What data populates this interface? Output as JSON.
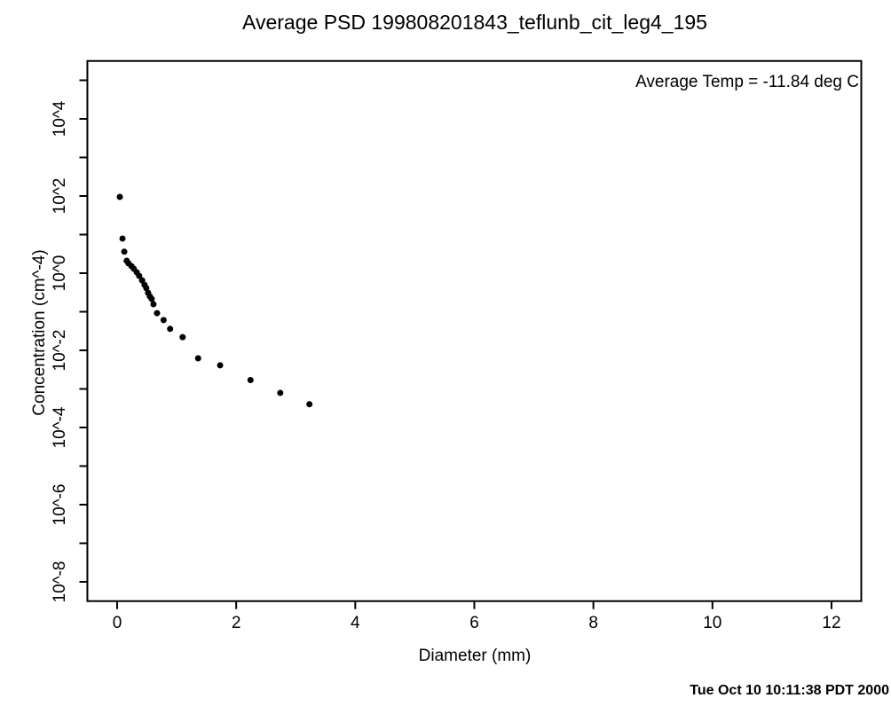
{
  "page": {
    "footer_timestamp": "Tue Oct 10 10:11:38 PDT 2000"
  },
  "chart_data": {
    "type": "scatter",
    "title": "Average PSD 199808201843_teflunb_cit_leg4_195",
    "xlabel": "Diameter (mm)",
    "ylabel": "Concentration (cm^-4)",
    "annotation": "Average Temp = -11.84 deg C",
    "background_color": "#ffffff",
    "axis_color": "#000000",
    "grid": false,
    "x_axis": {
      "min": -0.5,
      "max": 12.5,
      "ticks": [
        0,
        2,
        4,
        6,
        8,
        10,
        12
      ]
    },
    "y_axis": {
      "scale": "log10",
      "min_exp": -8.5,
      "max_exp": 5.5,
      "tick_exps": [
        5,
        4,
        3,
        2,
        1,
        0,
        -1,
        -2,
        -3,
        -4,
        -5,
        -6,
        -7,
        -8
      ],
      "labeled_ticks": [
        {
          "exp": 4,
          "label": "10^4"
        },
        {
          "exp": 2,
          "label": "10^2"
        },
        {
          "exp": 0,
          "label": "10^0"
        },
        {
          "exp": -2,
          "label": "10^-2"
        },
        {
          "exp": -4,
          "label": "10^-4"
        },
        {
          "exp": -6,
          "label": "10^-6"
        },
        {
          "exp": -8,
          "label": "10^-8"
        }
      ]
    },
    "marker": {
      "shape": "filled-circle",
      "color": "#000000",
      "radius_px": 3.5
    },
    "points": [
      {
        "x": 0.045,
        "y": 95
      },
      {
        "x": 0.09,
        "y": 7.9
      },
      {
        "x": 0.12,
        "y": 3.6
      },
      {
        "x": 0.16,
        "y": 2.1
      },
      {
        "x": 0.19,
        "y": 1.8
      },
      {
        "x": 0.24,
        "y": 1.53
      },
      {
        "x": 0.28,
        "y": 1.3
      },
      {
        "x": 0.33,
        "y": 1.05
      },
      {
        "x": 0.37,
        "y": 0.85
      },
      {
        "x": 0.42,
        "y": 0.65
      },
      {
        "x": 0.46,
        "y": 0.5
      },
      {
        "x": 0.49,
        "y": 0.41
      },
      {
        "x": 0.52,
        "y": 0.31
      },
      {
        "x": 0.55,
        "y": 0.25
      },
      {
        "x": 0.58,
        "y": 0.215
      },
      {
        "x": 0.61,
        "y": 0.157
      },
      {
        "x": 0.67,
        "y": 0.092
      },
      {
        "x": 0.78,
        "y": 0.061
      },
      {
        "x": 0.89,
        "y": 0.036
      },
      {
        "x": 1.1,
        "y": 0.022
      },
      {
        "x": 1.36,
        "y": 0.0062
      },
      {
        "x": 1.73,
        "y": 0.0041
      },
      {
        "x": 2.24,
        "y": 0.0017
      },
      {
        "x": 2.74,
        "y": 0.00079
      },
      {
        "x": 3.23,
        "y": 0.0004
      }
    ]
  }
}
